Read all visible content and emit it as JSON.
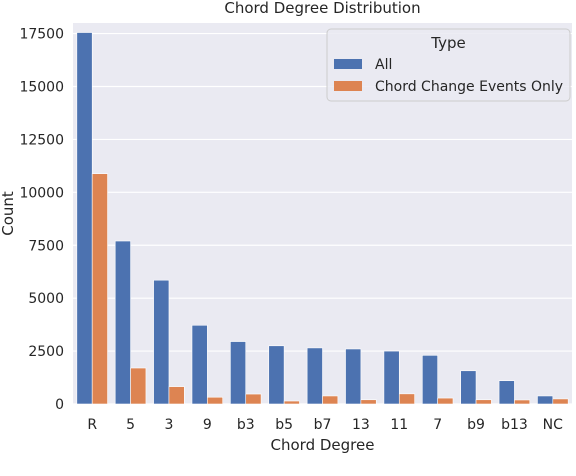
{
  "chart_data": {
    "type": "bar",
    "title": "Chord Degree Distribution",
    "xlabel": "Chord Degree",
    "ylabel": "Count",
    "ylim": [
      0,
      18000
    ],
    "yticks": [
      0,
      2500,
      5000,
      7500,
      10000,
      12500,
      15000,
      17500
    ],
    "grid": true,
    "legend": {
      "title": "Type",
      "placement": "top-right"
    },
    "categories": [
      "R",
      "5",
      "3",
      "9",
      "b3",
      "b5",
      "b7",
      "13",
      "11",
      "7",
      "b9",
      "b13",
      "NC"
    ],
    "series": [
      {
        "name": "All",
        "color": "#4c72b0",
        "values": [
          17550,
          7700,
          5850,
          3720,
          2950,
          2750,
          2650,
          2600,
          2500,
          2300,
          1570,
          1100,
          380
        ]
      },
      {
        "name": "Chord Change Events Only",
        "color": "#dd8452",
        "values": [
          10880,
          1700,
          820,
          320,
          470,
          140,
          380,
          200,
          480,
          280,
          200,
          190,
          240
        ]
      }
    ]
  }
}
